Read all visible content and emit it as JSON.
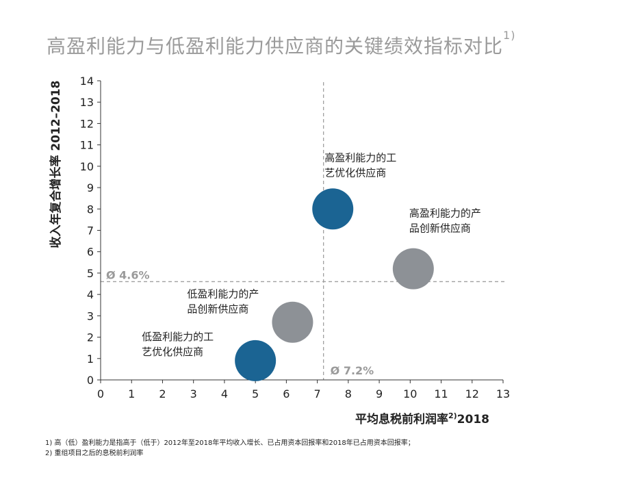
{
  "chart_data": {
    "type": "scatter",
    "title": "高盈利能力与低盈利能力供应商的关键绩效指标对比",
    "title_sup": "1)",
    "xlabel": "平均息税前利润率",
    "xlabel_sup": "2)",
    "xlabel_suffix": "2018",
    "ylabel": "收入年复合增长率 2012–2018",
    "xlim": [
      0,
      13
    ],
    "ylim": [
      0,
      14
    ],
    "xticks": [
      0,
      1,
      2,
      3,
      4,
      5,
      6,
      7,
      8,
      9,
      10,
      11,
      12,
      13
    ],
    "yticks": [
      0,
      1,
      2,
      3,
      4,
      5,
      6,
      7,
      8,
      9,
      10,
      11,
      12,
      13,
      14
    ],
    "grid": false,
    "reference_lines": {
      "vertical": {
        "x": 7.2,
        "label": "Ø 7.2%"
      },
      "horizontal": {
        "y": 4.6,
        "label": "Ø 4.6%"
      }
    },
    "points": [
      {
        "x": 7.5,
        "y": 8.0,
        "color": "#1b6493",
        "label_lines": [
          "高盈利能力的工",
          "艺优化供应商"
        ]
      },
      {
        "x": 10.1,
        "y": 5.2,
        "color": "#8d9196",
        "label_lines": [
          "高盈利能力的产",
          "品创新供应商"
        ]
      },
      {
        "x": 6.2,
        "y": 2.7,
        "color": "#8d9196",
        "label_lines": [
          "低盈利能力的产",
          "品创新供应商"
        ]
      },
      {
        "x": 5.0,
        "y": 0.9,
        "color": "#1b6493",
        "label_lines": [
          "低盈利能力的工",
          "艺优化供应商"
        ]
      }
    ]
  },
  "footnotes": [
    "1) 高（低）盈利能力是指高于（低于）2012年至2018年平均收入增长、已占用资本回报率和2018年已占用资本回报率；",
    "2) 重组项目之后的息税前利润率"
  ],
  "colors": {
    "title": "#9a9a9a",
    "axis": "#333333",
    "reference": "#a0a0a0",
    "reference_label": "#9a9a9a"
  }
}
